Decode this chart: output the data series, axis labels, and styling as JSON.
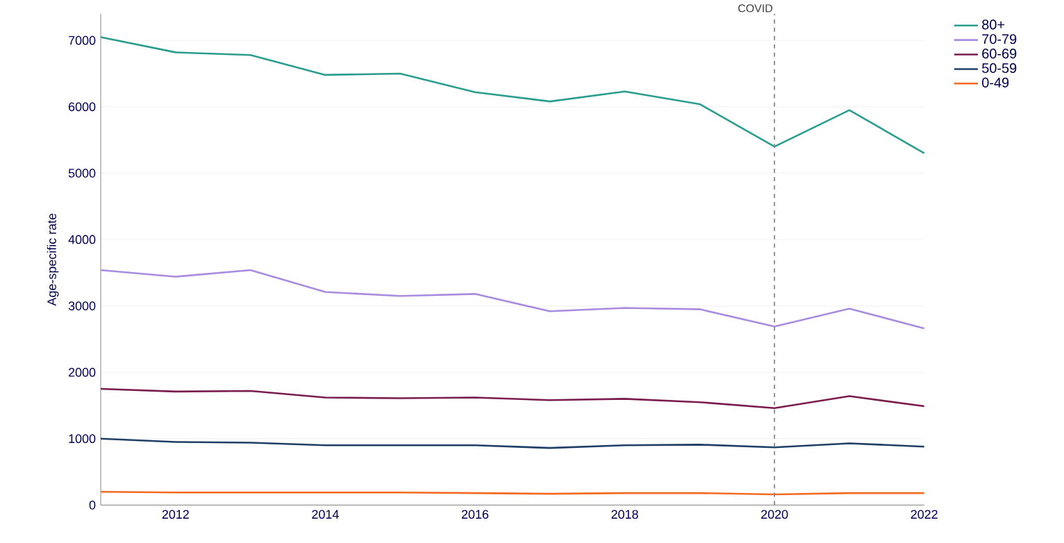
{
  "chart_data": {
    "type": "line",
    "ylabel": "Age-specific rate",
    "x": [
      2011,
      2012,
      2013,
      2014,
      2015,
      2016,
      2017,
      2018,
      2019,
      2020,
      2021,
      2022
    ],
    "xlim": [
      2011,
      2022
    ],
    "xticks": [
      2012,
      2014,
      2016,
      2018,
      2020,
      2022
    ],
    "ylim": [
      0,
      7400
    ],
    "yticks": [
      0,
      1000,
      2000,
      3000,
      4000,
      5000,
      6000,
      7000
    ],
    "grid": "y",
    "legend": "top right",
    "line_style": "solid",
    "ref_lines": [
      {
        "axis": "x",
        "value": 2020,
        "label": "COVID",
        "color": "#888888",
        "line_style": "dashed"
      }
    ],
    "series": [
      {
        "name": "80+",
        "color": "#2a9d8f",
        "values": [
          7050,
          6820,
          6780,
          6480,
          6500,
          6220,
          6080,
          6230,
          6040,
          5400,
          5950,
          5300
        ]
      },
      {
        "name": "70-79",
        "color": "#a98be0",
        "values": [
          3540,
          3440,
          3540,
          3210,
          3150,
          3180,
          2920,
          2970,
          2950,
          2690,
          2960,
          2660
        ]
      },
      {
        "name": "60-69",
        "color": "#7b1c4e",
        "values": [
          1750,
          1710,
          1720,
          1620,
          1610,
          1620,
          1580,
          1600,
          1550,
          1460,
          1640,
          1490
        ]
      },
      {
        "name": "50-59",
        "color": "#1f3f66",
        "values": [
          1000,
          950,
          940,
          900,
          900,
          900,
          860,
          900,
          910,
          870,
          930,
          880
        ]
      },
      {
        "name": "0-49",
        "color": "#f26b21",
        "values": [
          200,
          190,
          190,
          190,
          190,
          180,
          170,
          180,
          180,
          160,
          180,
          180
        ]
      }
    ]
  }
}
